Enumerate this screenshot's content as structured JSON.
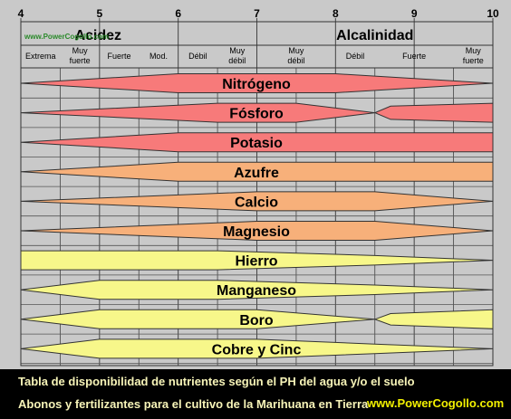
{
  "chart_data": {
    "type": "area",
    "title": "",
    "xlabel": "",
    "ylabel": "",
    "xlim": [
      4,
      10
    ],
    "ph_ticks": [
      "4",
      "5",
      "6",
      "7",
      "8",
      "9",
      "10"
    ],
    "zones": [
      {
        "label": "Acidez",
        "from": 4,
        "to": 7
      },
      {
        "label": "Alcalinidad",
        "from": 7,
        "to": 10
      }
    ],
    "intensity_labels": [
      {
        "label": "Extrema",
        "from": 4.0,
        "to": 4.5
      },
      {
        "label": "Muy fuerte",
        "from": 4.5,
        "to": 5.0
      },
      {
        "label": "Fuerte",
        "from": 5.0,
        "to": 5.5
      },
      {
        "label": "Mod.",
        "from": 5.5,
        "to": 6.0
      },
      {
        "label": "Débil",
        "from": 6.0,
        "to": 6.5
      },
      {
        "label": "Muy débil",
        "from": 6.5,
        "to": 7.0
      },
      {
        "label": "Muy débil",
        "from": 7.0,
        "to": 8.0
      },
      {
        "label": "Débil",
        "from": 8.0,
        "to": 8.5
      },
      {
        "label": "Fuerte",
        "from": 8.5,
        "to": 9.5
      },
      {
        "label": "Muy fuerte",
        "from": 9.5,
        "to": 10.0
      }
    ],
    "grid": true,
    "series": [
      {
        "name": "Nitrógeno",
        "color": "#f77a7a",
        "profile": [
          [
            4.0,
            0.0
          ],
          [
            6.0,
            1.0
          ],
          [
            8.0,
            1.0
          ],
          [
            10.0,
            0.0
          ]
        ]
      },
      {
        "name": "Fósforo",
        "color": "#f77a7a",
        "profile": [
          [
            4.0,
            0.0
          ],
          [
            6.5,
            1.0
          ],
          [
            7.5,
            1.0
          ],
          [
            8.5,
            0.0
          ],
          [
            8.7,
            0.7
          ],
          [
            10.0,
            1.0
          ]
        ]
      },
      {
        "name": "Potasio",
        "color": "#f77a7a",
        "profile": [
          [
            4.0,
            0.0
          ],
          [
            6.0,
            1.0
          ],
          [
            10.0,
            1.0
          ]
        ]
      },
      {
        "name": "Azufre",
        "color": "#f7b07a",
        "profile": [
          [
            4.0,
            0.0
          ],
          [
            6.0,
            1.0
          ],
          [
            10.0,
            1.0
          ]
        ]
      },
      {
        "name": "Calcio",
        "color": "#f7b07a",
        "profile": [
          [
            4.0,
            0.0
          ],
          [
            7.0,
            1.0
          ],
          [
            8.5,
            1.0
          ],
          [
            10.0,
            0.0
          ]
        ]
      },
      {
        "name": "Magnesio",
        "color": "#f7b07a",
        "profile": [
          [
            4.0,
            0.0
          ],
          [
            7.0,
            1.0
          ],
          [
            8.5,
            1.0
          ],
          [
            10.0,
            0.0
          ]
        ]
      },
      {
        "name": "Hierro",
        "color": "#f7f78a",
        "profile": [
          [
            4.0,
            1.0
          ],
          [
            6.5,
            1.0
          ],
          [
            8.5,
            0.5
          ],
          [
            10.0,
            0.0
          ]
        ]
      },
      {
        "name": "Manganeso",
        "color": "#f7f78a",
        "profile": [
          [
            4.0,
            0.0
          ],
          [
            5.0,
            1.0
          ],
          [
            6.5,
            1.0
          ],
          [
            8.5,
            0.5
          ],
          [
            10.0,
            0.0
          ]
        ]
      },
      {
        "name": "Boro",
        "color": "#f7f78a",
        "profile": [
          [
            4.0,
            0.0
          ],
          [
            5.0,
            1.0
          ],
          [
            7.0,
            1.0
          ],
          [
            8.5,
            0.0
          ],
          [
            8.7,
            0.6
          ],
          [
            10.0,
            1.0
          ]
        ]
      },
      {
        "name": "Cobre y Cinc",
        "color": "#f7f78a",
        "profile": [
          [
            4.0,
            0.0
          ],
          [
            5.0,
            1.0
          ],
          [
            7.0,
            1.0
          ],
          [
            8.5,
            0.5
          ],
          [
            10.0,
            0.0
          ]
        ]
      }
    ]
  },
  "watermark": "www.PowerCogollo.com",
  "caption": {
    "line1": "Tabla de disponibilidad de nutrientes según el PH del agua y/o el suelo",
    "line2": "Abonos y fertilizantes para el cultivo de la Marihuana en Tierra",
    "url": "www.PowerCogollo.com"
  }
}
